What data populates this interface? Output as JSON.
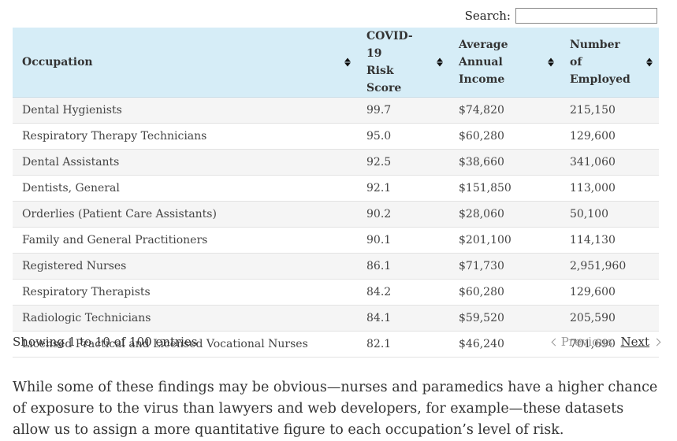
{
  "search": {
    "label": "Search:",
    "value": "",
    "placeholder": ""
  },
  "table": {
    "headers": [
      {
        "line1": "Occupation",
        "line2": ""
      },
      {
        "line1": "COVID-19",
        "line2": "Risk Score"
      },
      {
        "line1": "Average Annual",
        "line2": "Income"
      },
      {
        "line1": "Number of",
        "line2": "Employed"
      }
    ],
    "rows": [
      [
        "Dental Hygienists",
        "99.7",
        "$74,820",
        "215,150"
      ],
      [
        "Respiratory Therapy Technicians",
        "95.0",
        "$60,280",
        "129,600"
      ],
      [
        "Dental Assistants",
        "92.5",
        "$38,660",
        "341,060"
      ],
      [
        "Dentists, General",
        "92.1",
        "$151,850",
        "113,000"
      ],
      [
        "Orderlies (Patient Care Assistants)",
        "90.2",
        "$28,060",
        "50,100"
      ],
      [
        "Family and General Practitioners",
        "90.1",
        "$201,100",
        "114,130"
      ],
      [
        "Registered Nurses",
        "86.1",
        "$71,730",
        "2,951,960"
      ],
      [
        "Respiratory Therapists",
        "84.2",
        "$60,280",
        "129,600"
      ],
      [
        "Radiologic Technicians",
        "84.1",
        "$59,520",
        "205,590"
      ],
      [
        "Licensed Practical and Licensed Vocational Nurses",
        "82.1",
        "$46,240",
        "701,690"
      ]
    ]
  },
  "info": "Showing 1 to 10 of 100 entries",
  "pagination": {
    "previous": "Previous",
    "next": "Next"
  },
  "paragraph": "While some of these findings may be obvious—nurses and paramedics have a higher chance of exposure to the virus than lawyers and web developers, for example—these datasets allow us to assign a more quantitative figure to each occupation’s level of risk."
}
